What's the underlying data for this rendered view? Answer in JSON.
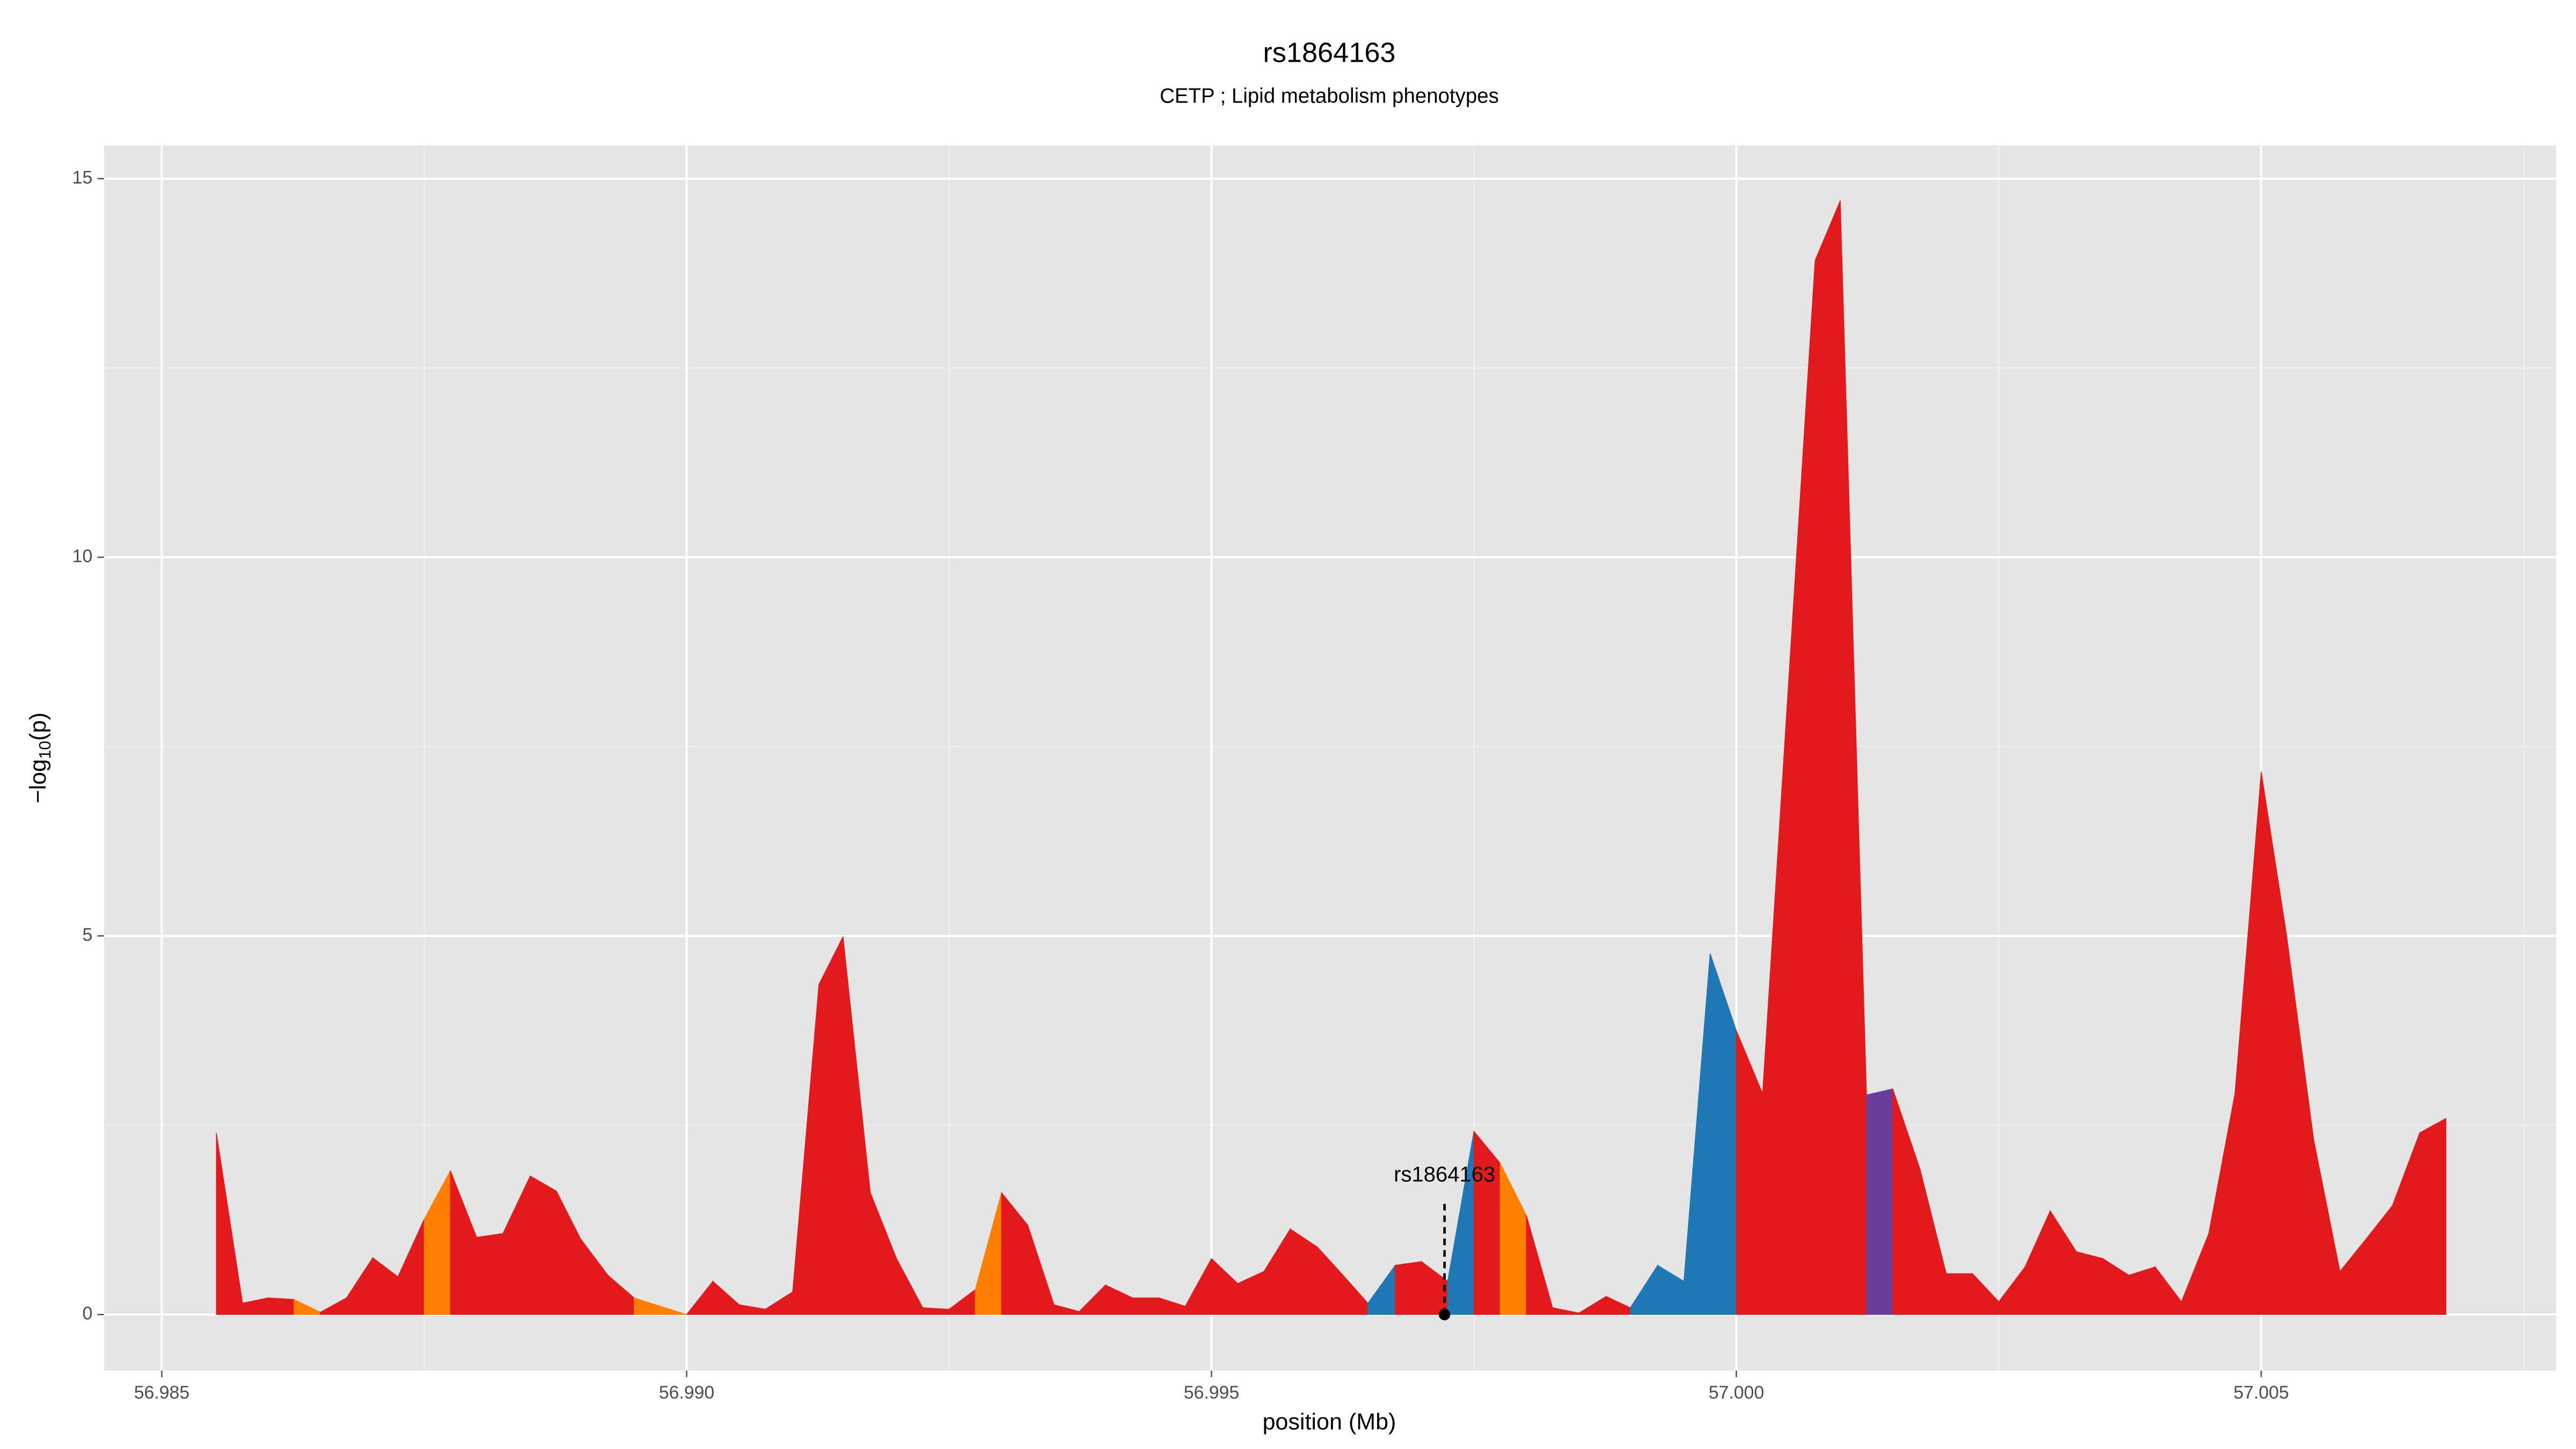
{
  "chart_data": {
    "type": "area",
    "title": "rs1864163",
    "subtitle": "CETP ; Lipid metabolism phenotypes",
    "xlabel": "position (Mb)",
    "ylabel": [
      "−log",
      "10",
      "(p)"
    ],
    "xlim": [
      56.98445,
      57.00781
    ],
    "ylim": [
      -0.74,
      15.44
    ],
    "xticks": [
      56.985,
      {
        "value": 56.99,
        "label": "56.990"
      },
      56.995,
      {
        "value": 57,
        "label": "57.000"
      },
      57.005
    ],
    "yticks": [
      0,
      5,
      10,
      15
    ],
    "x_minor_ticks": [
      56.9875,
      56.9925,
      56.9975,
      57.0025,
      57.0075
    ],
    "y_minor_ticks": [
      2.5,
      7.5,
      12.5
    ],
    "grid": true,
    "x": [
      56.98552,
      56.98577,
      56.98601,
      56.98626,
      56.98651,
      56.98676,
      56.98701,
      56.98725,
      56.9875,
      56.98775,
      56.988,
      56.98825,
      56.98851,
      56.98876,
      56.98899,
      56.98925,
      56.9895,
      56.98975,
      56.99,
      56.99025,
      56.9905,
      56.99075,
      56.99101,
      56.99126,
      56.99149,
      56.99175,
      56.992,
      56.99225,
      56.9925,
      56.99275,
      56.993,
      56.99325,
      56.9935,
      56.99374,
      56.99399,
      56.99425,
      56.9945,
      56.99475,
      56.995,
      56.99525,
      56.9955,
      56.99575,
      56.99601,
      56.99624,
      56.99649,
      56.99675,
      56.997,
      56.99725,
      56.9975,
      56.99775,
      56.998,
      56.99825,
      56.9985,
      56.99876,
      56.99899,
      56.99925,
      56.9995,
      56.99975,
      57.0,
      57.00025,
      57.0005,
      57.00075,
      57.00099,
      57.00124,
      57.00149,
      57.00175,
      57.002,
      57.00225,
      57.0025,
      57.00275,
      57.00299,
      57.00324,
      57.00349,
      57.00374,
      57.00399,
      57.00424,
      57.0045,
      57.00475,
      57.005,
      57.00524,
      57.0055,
      57.00575,
      57.006,
      57.00625,
      57.00651,
      57.00676
    ],
    "values": [
      2.4,
      0.15,
      0.22,
      0.2,
      0.03,
      0.22,
      0.75,
      0.5,
      1.26,
      1.9,
      1.02,
      1.07,
      1.83,
      1.63,
      1.0,
      0.52,
      0.22,
      0.11,
      0,
      0.44,
      0.13,
      0.07,
      0.3,
      4.36,
      4.99,
      1.61,
      0.74,
      0.09,
      0.07,
      0.33,
      1.61,
      1.18,
      0.13,
      0.04,
      0.39,
      0.22,
      0.22,
      0.11,
      0.74,
      0.41,
      0.57,
      1.13,
      0.89,
      0.54,
      0.15,
      0.65,
      0.7,
      0.44,
      2.42,
      2.0,
      1.31,
      0.09,
      0.02,
      0.24,
      0.09,
      0.65,
      0.44,
      4.77,
      3.75,
      2.92,
      8.41,
      13.92,
      14.71,
      2.9,
      2.98,
      1.92,
      0.54,
      0.54,
      0.17,
      0.63,
      1.37,
      0.83,
      0.74,
      0.52,
      0.63,
      0.17,
      1.07,
      2.92,
      7.17,
      5.03,
      2.31,
      0.57,
      1.0,
      1.44,
      2.4,
      2.59
    ],
    "colors": [
      "#e31a1c",
      "#e31a1c",
      "#e31a1c",
      "#ff7f00",
      "#e31a1c",
      "#e31a1c",
      "#e31a1c",
      "#e31a1c",
      "#ff7f00",
      "#e31a1c",
      "#e31a1c",
      "#e31a1c",
      "#e31a1c",
      "#e31a1c",
      "#e31a1c",
      "#e31a1c",
      "#ff7f00",
      "#ff7f00",
      "#e31a1c",
      "#e31a1c",
      "#e31a1c",
      "#e31a1c",
      "#e31a1c",
      "#e31a1c",
      "#e31a1c",
      "#e31a1c",
      "#e31a1c",
      "#e31a1c",
      "#e31a1c",
      "#ff7f00",
      "#e31a1c",
      "#e31a1c",
      "#e31a1c",
      "#e31a1c",
      "#e31a1c",
      "#e31a1c",
      "#e31a1c",
      "#e31a1c",
      "#e31a1c",
      "#e31a1c",
      "#e31a1c",
      "#e31a1c",
      "#e31a1c",
      "#e31a1c",
      "#1f78b4",
      "#e31a1c",
      "#e31a1c",
      "#1f78b4",
      "#e31a1c",
      "#ff7f00",
      "#e31a1c",
      "#e31a1c",
      "#e31a1c",
      "#e31a1c",
      "#1f78b4",
      "#1f78b4",
      "#1f78b4",
      "#1f78b4",
      "#e31a1c",
      "#e31a1c",
      "#e31a1c",
      "#e31a1c",
      "#e31a1c",
      "#6a3d9a",
      "#e31a1c",
      "#e31a1c",
      "#e31a1c",
      "#e31a1c",
      "#e31a1c",
      "#e31a1c",
      "#e31a1c",
      "#e31a1c",
      "#e31a1c",
      "#e31a1c",
      "#e31a1c",
      "#e31a1c",
      "#e31a1c",
      "#e31a1c",
      "#e31a1c",
      "#e31a1c",
      "#e31a1c",
      "#e31a1c",
      "#e31a1c",
      "#e31a1c",
      "#e31a1c",
      "#e31a1c"
    ],
    "annotation": {
      "text": "rs1864163",
      "x": 56.99722,
      "y": 0
    }
  }
}
